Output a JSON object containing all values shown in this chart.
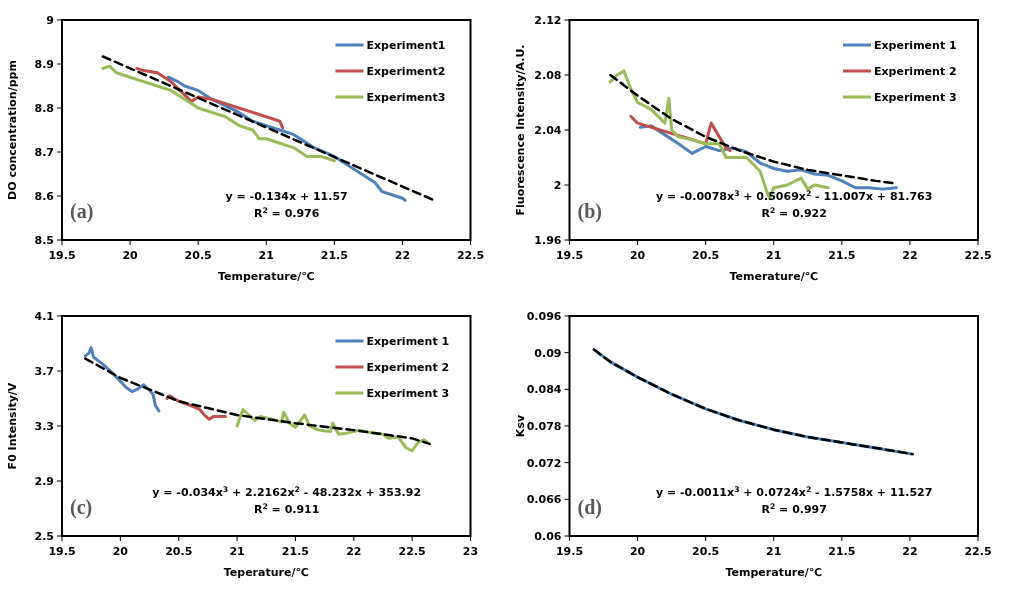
{
  "chart_data": [
    {
      "type": "line",
      "xlabel": "Temperature/℃",
      "ylabel": "DO concentration/ppm",
      "xlim": [
        19.5,
        22.5
      ],
      "xticks": [
        19.5,
        20,
        20.5,
        21,
        21.5,
        22,
        22.5
      ],
      "ylim": [
        8.5,
        9
      ],
      "yticks": [
        8.5,
        8.6,
        8.7,
        8.8,
        8.9,
        9
      ],
      "legend": "top right",
      "grid": false,
      "annotations": [
        "(a)",
        "y = -0.134x + 11.57",
        "R$^{2}$ = 0.976"
      ],
      "series": [
        {
          "name": "Experiment1",
          "color": "#4f81bd",
          "x": [
            20.28,
            20.35,
            20.4,
            20.5,
            20.6,
            20.8,
            20.9,
            21.0,
            21.1,
            21.2,
            21.3,
            21.35,
            21.5,
            21.6,
            21.7,
            21.8,
            21.85,
            21.9,
            22.0,
            22.02
          ],
          "values": [
            8.87,
            8.86,
            8.85,
            8.84,
            8.82,
            8.79,
            8.77,
            8.76,
            8.75,
            8.74,
            8.72,
            8.71,
            8.69,
            8.67,
            8.65,
            8.63,
            8.61,
            8.605,
            8.595,
            8.59
          ]
        },
        {
          "name": "Experiment2",
          "color": "#c0504d",
          "x": [
            20.05,
            20.1,
            20.2,
            20.3,
            20.4,
            20.45,
            20.5,
            20.6,
            20.7,
            20.8,
            20.9,
            21.0,
            21.1,
            21.12
          ],
          "values": [
            8.89,
            8.885,
            8.88,
            8.86,
            8.83,
            8.815,
            8.825,
            8.82,
            8.81,
            8.8,
            8.79,
            8.78,
            8.77,
            8.755
          ]
        },
        {
          "name": "Experiment3",
          "color": "#9bbb59",
          "x": [
            19.8,
            19.85,
            19.9,
            20.0,
            20.1,
            20.2,
            20.3,
            20.4,
            20.45,
            20.5,
            20.6,
            20.7,
            20.8,
            20.9,
            20.95,
            21.0,
            21.1,
            21.2,
            21.3,
            21.4,
            21.5
          ],
          "values": [
            8.89,
            8.895,
            8.88,
            8.87,
            8.86,
            8.85,
            8.84,
            8.82,
            8.81,
            8.8,
            8.79,
            8.78,
            8.76,
            8.75,
            8.73,
            8.73,
            8.72,
            8.71,
            8.69,
            8.69,
            8.68
          ]
        },
        {
          "type": "line",
          "color": "#000000",
          "line_style": "dashed",
          "x": [
            19.8,
            22.22
          ],
          "values": [
            8.917,
            8.592
          ]
        }
      ]
    },
    {
      "type": "line",
      "xlabel": "Temerature/℃",
      "ylabel": "Fluorescence Intensity/A.U.",
      "xlim": [
        19.5,
        22.5
      ],
      "xticks": [
        19.5,
        20,
        20.5,
        21,
        21.5,
        22,
        22.5
      ],
      "ylim": [
        1.96,
        2.12
      ],
      "yticks": [
        1.96,
        2,
        2.04,
        2.08,
        2.12
      ],
      "legend": "top right",
      "grid": false,
      "annotations": [
        "(b)",
        "y = -0.0078x$^{3}$ + 0.5069x$^{2}$ - 11.007x + 81.763",
        "R$^{2}$ = 0.922"
      ],
      "series": [
        {
          "name": "Experiment 1",
          "color": "#4f81bd",
          "x": [
            20.02,
            20.1,
            20.3,
            20.4,
            20.5,
            20.6,
            20.7,
            20.8,
            20.9,
            21.0,
            21.1,
            21.2,
            21.3,
            21.4,
            21.5,
            21.6,
            21.7,
            21.8,
            21.9
          ],
          "values": [
            2.042,
            2.043,
            2.03,
            2.023,
            2.028,
            2.025,
            2.027,
            2.024,
            2.016,
            2.012,
            2.01,
            2.011,
            2.008,
            2.007,
            2.003,
            1.998,
            1.998,
            1.997,
            1.998
          ]
        },
        {
          "name": "Experiment 2",
          "color": "#c0504d",
          "x": [
            19.95,
            20.0,
            20.5,
            20.54,
            20.6,
            20.65,
            20.68
          ],
          "values": [
            2.05,
            2.045,
            2.03,
            2.045,
            2.035,
            2.027,
            2.025
          ]
        },
        {
          "name": "Experiment 3",
          "color": "#9bbb59",
          "x": [
            19.8,
            19.85,
            19.9,
            19.95,
            20.0,
            20.1,
            20.2,
            20.23,
            20.25,
            20.3,
            20.4,
            20.5,
            20.6,
            20.65,
            20.7,
            20.8,
            20.9,
            20.95,
            20.97,
            21.0,
            21.1,
            21.2,
            21.25,
            21.3,
            21.4
          ],
          "values": [
            2.075,
            2.08,
            2.083,
            2.07,
            2.06,
            2.055,
            2.045,
            2.063,
            2.04,
            2.035,
            2.033,
            2.03,
            2.03,
            2.02,
            2.02,
            2.02,
            2.01,
            1.995,
            1.99,
            1.998,
            2.0,
            2.005,
            1.997,
            2.0,
            1.998
          ]
        },
        {
          "type": "line",
          "color": "#000000",
          "line_style": "dashed",
          "x": [
            19.8,
            20.0,
            20.25,
            20.5,
            20.75,
            21.0,
            21.25,
            21.5,
            21.75,
            21.9
          ],
          "values": [
            2.08,
            2.065,
            2.048,
            2.035,
            2.025,
            2.017,
            2.011,
            2.007,
            2.003,
            2.001
          ]
        }
      ]
    },
    {
      "type": "line",
      "xlabel": "Teperature/℃",
      "ylabel": "F0 Intensity/V",
      "xlim": [
        19.5,
        23
      ],
      "xticks": [
        19.5,
        20,
        20.5,
        21,
        21.5,
        22,
        22.5,
        23
      ],
      "ylim": [
        2.5,
        4.1
      ],
      "yticks": [
        2.5,
        2.9,
        3.3,
        3.7,
        4.1
      ],
      "legend": "top right",
      "grid": false,
      "annotations": [
        "(c)",
        "y = -0.034x$^{3}$ + 2.2162x$^{2}$ - 48.232x + 353.92",
        "R$^{2}$ = 0.911"
      ],
      "series": [
        {
          "name": "Experiment 1",
          "color": "#4f81bd",
          "x": [
            19.7,
            19.73,
            19.75,
            19.77,
            19.85,
            19.95,
            20.05,
            20.1,
            20.15,
            20.2,
            20.25,
            20.28,
            20.3,
            20.33
          ],
          "values": [
            3.81,
            3.83,
            3.87,
            3.8,
            3.75,
            3.67,
            3.58,
            3.55,
            3.57,
            3.6,
            3.56,
            3.53,
            3.45,
            3.41
          ]
        },
        {
          "name": "Experiment 2",
          "color": "#c0504d",
          "x": [
            20.4,
            20.42,
            20.5,
            20.6,
            20.68,
            20.72,
            20.76,
            20.8,
            20.9
          ],
          "values": [
            3.5,
            3.52,
            3.48,
            3.45,
            3.42,
            3.38,
            3.35,
            3.37,
            3.37
          ]
        },
        {
          "name": "Experiment 3",
          "color": "#9bbb59",
          "x": [
            21.0,
            21.05,
            21.1,
            21.15,
            21.2,
            21.3,
            21.38,
            21.4,
            21.45,
            21.5,
            21.58,
            21.62,
            21.7,
            21.8,
            21.82,
            21.87,
            21.95,
            22.05,
            22.15,
            22.25,
            22.3,
            22.38,
            22.45,
            22.5,
            22.55,
            22.6,
            22.63
          ],
          "values": [
            3.3,
            3.42,
            3.38,
            3.34,
            3.37,
            3.35,
            3.33,
            3.4,
            3.32,
            3.29,
            3.38,
            3.3,
            3.27,
            3.26,
            3.32,
            3.24,
            3.25,
            3.27,
            3.25,
            3.24,
            3.21,
            3.22,
            3.14,
            3.12,
            3.18,
            3.2,
            3.18
          ]
        },
        {
          "type": "line",
          "color": "#000000",
          "line_style": "dashed",
          "x": [
            19.7,
            20.0,
            20.5,
            21.0,
            21.5,
            22.0,
            22.5,
            22.65
          ],
          "values": [
            3.79,
            3.65,
            3.48,
            3.38,
            3.32,
            3.27,
            3.21,
            3.17
          ]
        }
      ]
    },
    {
      "type": "line",
      "xlabel": "Temperature/℃",
      "ylabel": "Ksv",
      "xlim": [
        19.5,
        22.5
      ],
      "xticks": [
        19.5,
        20,
        20.5,
        21,
        21.5,
        22,
        22.5
      ],
      "ylim": [
        0.06,
        0.096
      ],
      "yticks": [
        0.06,
        0.066,
        0.072,
        0.078,
        0.084,
        0.09,
        0.096
      ],
      "grid": false,
      "annotations": [
        "(d)",
        "y = -0.0011x$^{3}$ + 0.0724x$^{2}$ - 1.5758x + 11.527",
        "R$^{2}$ = 0.997"
      ],
      "series": [
        {
          "color": "#4f81bd",
          "x": [
            19.68,
            19.8,
            20.0,
            20.25,
            20.5,
            20.75,
            21.0,
            21.25,
            21.5,
            21.75,
            22.02
          ],
          "values": [
            0.0905,
            0.0885,
            0.086,
            0.0832,
            0.0808,
            0.0789,
            0.0774,
            0.0762,
            0.0753,
            0.0744,
            0.0734
          ]
        },
        {
          "type": "line",
          "color": "#000000",
          "line_style": "dashed",
          "x": [
            19.68,
            19.8,
            20.0,
            20.25,
            20.5,
            20.75,
            21.0,
            21.25,
            21.5,
            21.75,
            22.02
          ],
          "values": [
            0.0905,
            0.0885,
            0.086,
            0.0832,
            0.0808,
            0.0789,
            0.0774,
            0.0762,
            0.0753,
            0.0744,
            0.0734
          ]
        }
      ]
    }
  ]
}
